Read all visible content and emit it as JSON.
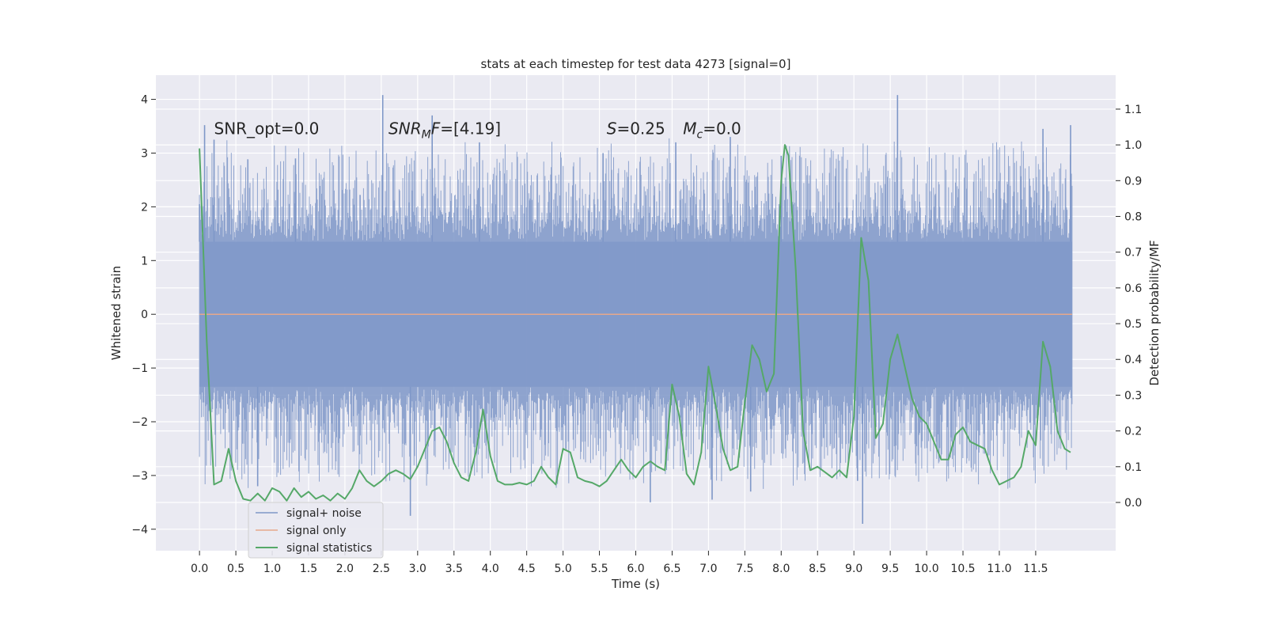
{
  "chart_data": {
    "type": "line",
    "title": "stats at each timestep for test data 4273 [signal=0]",
    "xlabel": "Time (s)",
    "ylabel_left": "Whitened strain",
    "ylabel_right": "Detection probability/MF",
    "xlim": [
      -0.6,
      12.6
    ],
    "ylim_left": [
      -4.4,
      4.45
    ],
    "ylim_right": [
      -0.135,
      1.195
    ],
    "x_ticks": [
      0.0,
      0.5,
      1.0,
      1.5,
      2.0,
      2.5,
      3.0,
      3.5,
      4.0,
      4.5,
      5.0,
      5.5,
      6.0,
      6.5,
      7.0,
      7.5,
      8.0,
      8.5,
      9.0,
      9.5,
      10.0,
      10.5,
      11.0,
      11.5
    ],
    "x_tick_labels": [
      "0.0",
      "0.5",
      "1.0",
      "1.5",
      "2.0",
      "2.5",
      "3.0",
      "3.5",
      "4.0",
      "4.5",
      "5.0",
      "5.5",
      "6.0",
      "6.5",
      "7.0",
      "7.5",
      "8.0",
      "8.5",
      "9.0",
      "9.5",
      "10.0",
      "10.5",
      "11.0",
      "11.5"
    ],
    "y_left_ticks": [
      -4,
      -3,
      -2,
      -1,
      0,
      1,
      2,
      3,
      4
    ],
    "y_left_tick_labels": [
      "−4",
      "−3",
      "−2",
      "−1",
      "0",
      "1",
      "2",
      "3",
      "4"
    ],
    "y_right_ticks": [
      0.0,
      0.1,
      0.2,
      0.3,
      0.4,
      0.5,
      0.6,
      0.7,
      0.8,
      0.9,
      1.0,
      1.1
    ],
    "y_right_tick_labels": [
      "0.0",
      "0.1",
      "0.2",
      "0.3",
      "0.4",
      "0.5",
      "0.6",
      "0.7",
      "0.8",
      "0.9",
      "1.0",
      "1.1"
    ],
    "grid": true,
    "legend_position": "lower-left",
    "noise_band_left": [
      -1.35,
      1.35
    ],
    "noise_duration": 12.0,
    "noise_spikes": {
      "t": [
        0.0,
        0.07,
        0.2,
        0.8,
        1.32,
        2.52,
        2.9,
        3.2,
        3.85,
        5.55,
        6.2,
        6.55,
        7.05,
        7.3,
        7.58,
        8.0,
        9.05,
        9.12,
        9.6,
        11.6,
        11.98
      ],
      "value": [
        2.05,
        3.52,
        3.25,
        -3.2,
        2.9,
        4.08,
        -3.75,
        3.7,
        3.2,
        3.0,
        -3.5,
        3.2,
        -3.45,
        3.3,
        -3.3,
        2.95,
        -3.1,
        -3.9,
        4.08,
        3.45,
        3.52
      ]
    },
    "series": [
      {
        "name": "signal+ noise",
        "axis": "left",
        "color": "#7e97c8",
        "style": "dense-noise",
        "values_summary": "noise fluctuating mostly within ±2.5, peaks near ±4"
      },
      {
        "name": "signal only",
        "axis": "left",
        "color": "#e6a88b",
        "x": [
          0.0,
          12.0
        ],
        "values": [
          0.0,
          0.0
        ]
      },
      {
        "name": "signal statistics",
        "axis": "right",
        "color": "#55a868",
        "x": [
          0.0,
          0.1,
          0.2,
          0.3,
          0.4,
          0.5,
          0.6,
          0.7,
          0.8,
          0.9,
          1.0,
          1.1,
          1.2,
          1.3,
          1.4,
          1.5,
          1.6,
          1.7,
          1.8,
          1.9,
          2.0,
          2.1,
          2.2,
          2.3,
          2.4,
          2.5,
          2.6,
          2.7,
          2.8,
          2.9,
          3.0,
          3.1,
          3.2,
          3.3,
          3.4,
          3.5,
          3.6,
          3.7,
          3.8,
          3.9,
          4.0,
          4.1,
          4.2,
          4.3,
          4.4,
          4.5,
          4.6,
          4.7,
          4.8,
          4.9,
          5.0,
          5.1,
          5.2,
          5.3,
          5.4,
          5.5,
          5.6,
          5.7,
          5.8,
          5.9,
          6.0,
          6.1,
          6.2,
          6.3,
          6.4,
          6.5,
          6.6,
          6.7,
          6.8,
          6.9,
          7.0,
          7.1,
          7.2,
          7.3,
          7.4,
          7.5,
          7.6,
          7.7,
          7.8,
          7.9,
          8.0,
          8.05,
          8.1,
          8.2,
          8.3,
          8.4,
          8.5,
          8.6,
          8.7,
          8.8,
          8.9,
          9.0,
          9.1,
          9.2,
          9.3,
          9.4,
          9.5,
          9.6,
          9.7,
          9.8,
          9.9,
          10.0,
          10.1,
          10.2,
          10.3,
          10.4,
          10.5,
          10.6,
          10.7,
          10.8,
          10.9,
          11.0,
          11.1,
          11.2,
          11.3,
          11.4,
          11.5,
          11.6,
          11.7,
          11.8,
          11.9,
          11.98
        ],
        "values": [
          0.99,
          0.45,
          0.05,
          0.06,
          0.15,
          0.06,
          0.01,
          0.005,
          0.025,
          0.005,
          0.04,
          0.03,
          0.005,
          0.04,
          0.015,
          0.03,
          0.01,
          0.02,
          0.005,
          0.025,
          0.01,
          0.04,
          0.09,
          0.06,
          0.045,
          0.06,
          0.08,
          0.09,
          0.08,
          0.065,
          0.1,
          0.15,
          0.2,
          0.21,
          0.17,
          0.11,
          0.07,
          0.06,
          0.14,
          0.26,
          0.13,
          0.06,
          0.05,
          0.05,
          0.055,
          0.05,
          0.06,
          0.1,
          0.07,
          0.05,
          0.15,
          0.14,
          0.07,
          0.06,
          0.055,
          0.045,
          0.06,
          0.09,
          0.12,
          0.09,
          0.07,
          0.1,
          0.115,
          0.1,
          0.09,
          0.33,
          0.24,
          0.08,
          0.05,
          0.14,
          0.38,
          0.27,
          0.15,
          0.09,
          0.1,
          0.28,
          0.44,
          0.4,
          0.31,
          0.36,
          0.9,
          1.0,
          0.97,
          0.65,
          0.2,
          0.09,
          0.1,
          0.085,
          0.07,
          0.09,
          0.07,
          0.24,
          0.74,
          0.62,
          0.18,
          0.22,
          0.4,
          0.47,
          0.38,
          0.29,
          0.24,
          0.22,
          0.17,
          0.12,
          0.12,
          0.19,
          0.21,
          0.17,
          0.16,
          0.15,
          0.09,
          0.05,
          0.06,
          0.07,
          0.1,
          0.2,
          0.16,
          0.45,
          0.38,
          0.2,
          0.15,
          0.14
        ]
      }
    ],
    "annotations": [
      {
        "x": 0.2,
        "y": 3.35,
        "text": "SNR_opt=0.0",
        "style": "plain"
      },
      {
        "x": 2.6,
        "y": 3.35,
        "text": "SNR",
        "sub": "M",
        "suffix": "F=[4.19]",
        "style": "math"
      },
      {
        "x": 5.6,
        "y": 3.35,
        "text": "S",
        "suffix": "=0.25",
        "style": "math"
      },
      {
        "x": 6.65,
        "y": 3.35,
        "text": "M",
        "sub": "c",
        "suffix": "=0.0",
        "style": "math"
      }
    ]
  }
}
